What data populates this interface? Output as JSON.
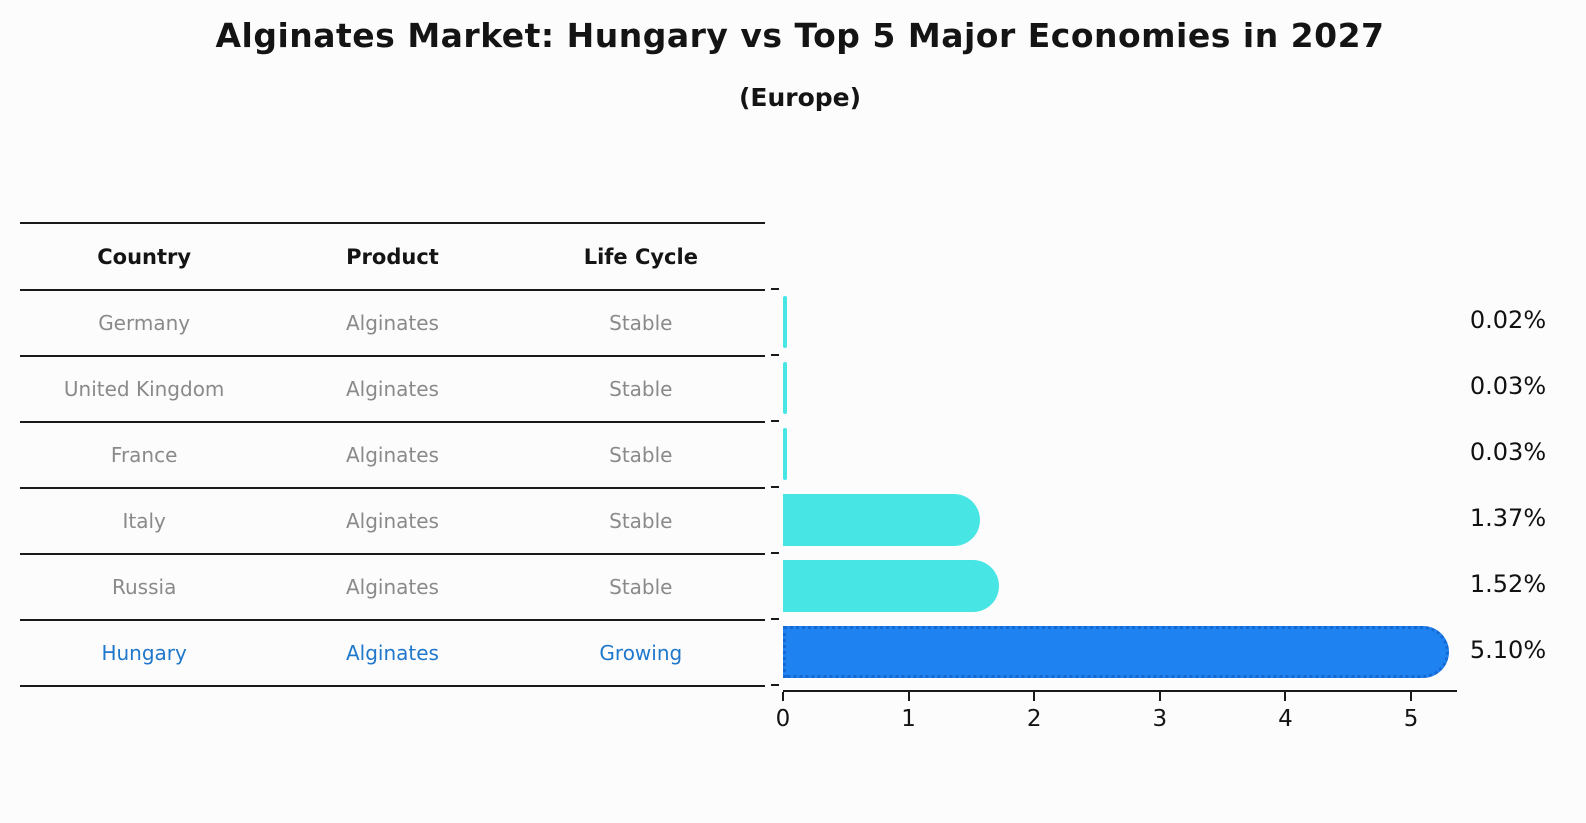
{
  "title": "Alginates Market: Hungary vs Top 5 Major Economies in 2027",
  "subtitle": "(Europe)",
  "table": {
    "headers": [
      "Country",
      "Product",
      "Life Cycle"
    ],
    "rows": [
      {
        "country": "Germany",
        "product": "Alginates",
        "life_cycle": "Stable",
        "highlight": false
      },
      {
        "country": "United Kingdom",
        "product": "Alginates",
        "life_cycle": "Stable",
        "highlight": false
      },
      {
        "country": "France",
        "product": "Alginates",
        "life_cycle": "Stable",
        "highlight": false
      },
      {
        "country": "Italy",
        "product": "Alginates",
        "life_cycle": "Stable",
        "highlight": false
      },
      {
        "country": "Russia",
        "product": "Alginates",
        "life_cycle": "Stable",
        "highlight": false
      },
      {
        "country": "Hungary",
        "product": "Alginates",
        "life_cycle": "Growing",
        "highlight": true
      }
    ]
  },
  "chart_data": {
    "type": "bar",
    "orientation": "horizontal",
    "title": "Alginates Market: Hungary vs Top 5 Major Economies in 2027 (Europe)",
    "categories": [
      "Germany",
      "United Kingdom",
      "France",
      "Italy",
      "Russia",
      "Hungary"
    ],
    "values": [
      0.02,
      0.03,
      0.03,
      1.37,
      1.52,
      5.1
    ],
    "value_labels": [
      "0.02%",
      "0.03%",
      "0.03%",
      "1.37%",
      "1.52%",
      "5.10%"
    ],
    "highlight_index": 5,
    "x_ticks": [
      "0",
      "1",
      "2",
      "3",
      "4",
      "5"
    ],
    "x_tick_values": [
      0,
      1,
      2,
      3,
      4,
      5
    ],
    "xlim": [
      0,
      5.35
    ],
    "grid": false,
    "legend": "none",
    "bar_color": "#48e5e5",
    "highlight_bar_color": "#1e82f0",
    "highlight_border_style": "dotted"
  },
  "colors": {
    "background": "#fcfcfd",
    "text_primary": "#141414",
    "text_muted": "#8a8a8a",
    "text_highlight": "#1f78cc",
    "bar_cyan": "#48e5e5",
    "bar_blue": "#1e82f0",
    "rule": "#1a1a1a"
  }
}
